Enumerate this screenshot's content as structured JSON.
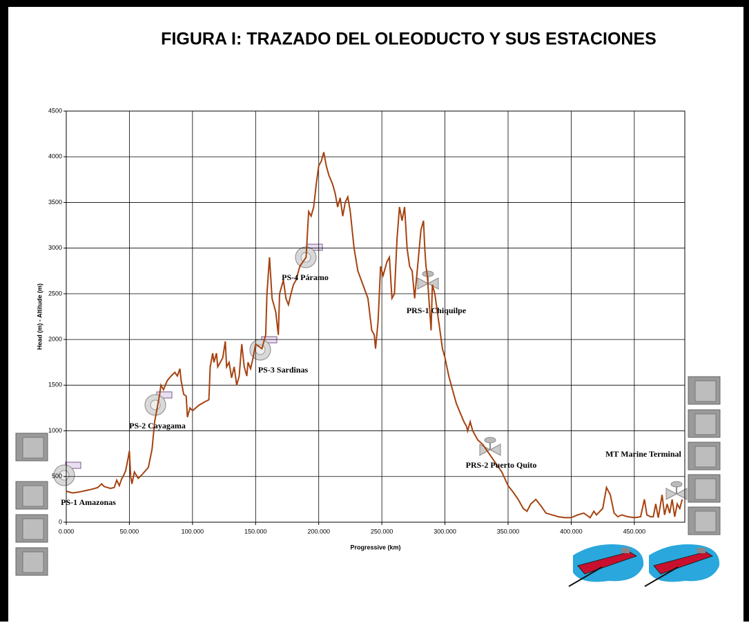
{
  "chart_data": {
    "type": "line",
    "title": "FIGURA I: TRAZADO DEL OLEODUCTO Y SUS ESTACIONES",
    "x_label": "Progressive (km)",
    "y_label": "Head (m) - Altitude (m)",
    "color": "#a5420f",
    "grid": true,
    "xlim": [
      0,
      490
    ],
    "ylim": [
      0,
      4500
    ],
    "xticks": [
      {
        "value": 0,
        "label": "0.000"
      },
      {
        "value": 50,
        "label": "50.000"
      },
      {
        "value": 100,
        "label": "100.000"
      },
      {
        "value": 150,
        "label": "150.000"
      },
      {
        "value": 200,
        "label": "200.000"
      },
      {
        "value": 250,
        "label": "250.000"
      },
      {
        "value": 300,
        "label": "300.000"
      },
      {
        "value": 350,
        "label": "350.000"
      },
      {
        "value": 400,
        "label": "400.000"
      },
      {
        "value": 450,
        "label": "450.000"
      }
    ],
    "yticks": [
      0,
      500,
      1000,
      1500,
      2000,
      2500,
      3000,
      3500,
      4000,
      4500
    ],
    "annotations": [
      "PS-1 Amazonas",
      "PS-2 Cayagama",
      "PS-3 Sardinas",
      "PS-4 Páramo",
      "PRS-1 Chiquilpe",
      "PRS-2 Puerto Quito",
      "MT Marine Terminal"
    ],
    "x": [
      0,
      5,
      10,
      20,
      25,
      28,
      30,
      35,
      38,
      40,
      42,
      44,
      45,
      47,
      49,
      50,
      51,
      52,
      54,
      57,
      60,
      65,
      68,
      70,
      72,
      74,
      75,
      77,
      80,
      83,
      86,
      88,
      90,
      91,
      93,
      95,
      96,
      98,
      100,
      105,
      110,
      113,
      114,
      116,
      117,
      119,
      120,
      122,
      124,
      126,
      127,
      129,
      131,
      133,
      135,
      137,
      139,
      141,
      143,
      144,
      146,
      148,
      150,
      155,
      158,
      159,
      161,
      163,
      166,
      168,
      169,
      172,
      174,
      176,
      178,
      180,
      182,
      185,
      190,
      192,
      194,
      196,
      198,
      200,
      202,
      204,
      206,
      208,
      211,
      213,
      215,
      217,
      219,
      221,
      223,
      225,
      228,
      231,
      235,
      239,
      242,
      244,
      245,
      247,
      249,
      251,
      254,
      256,
      258,
      260,
      262,
      264,
      266,
      268,
      270,
      272,
      274,
      276,
      277,
      279,
      281,
      283,
      284,
      285,
      286,
      287,
      289,
      290,
      292,
      294,
      296,
      298,
      300,
      303,
      306,
      309,
      312,
      315,
      317,
      318,
      320,
      322,
      324,
      326,
      330,
      335,
      340,
      345,
      350,
      354,
      358,
      362,
      365,
      368,
      372,
      376,
      380,
      385,
      390,
      395,
      400,
      405,
      410,
      415,
      418,
      420,
      425,
      428,
      431,
      434,
      437,
      440,
      445,
      450,
      455,
      458,
      460,
      463,
      465,
      467,
      469,
      472,
      474,
      476,
      478,
      480,
      482,
      484,
      486,
      488
    ],
    "values": [
      340,
      320,
      330,
      360,
      380,
      420,
      390,
      370,
      380,
      460,
      400,
      480,
      500,
      560,
      700,
      780,
      500,
      420,
      550,
      480,
      520,
      600,
      800,
      1100,
      1250,
      1400,
      1500,
      1450,
      1550,
      1600,
      1640,
      1600,
      1680,
      1550,
      1400,
      1380,
      1150,
      1250,
      1220,
      1280,
      1320,
      1340,
      1700,
      1850,
      1750,
      1850,
      1700,
      1750,
      1800,
      1980,
      1700,
      1750,
      1580,
      1700,
      1500,
      1600,
      1950,
      1700,
      1600,
      1750,
      1680,
      1800,
      1950,
      1900,
      2050,
      2500,
      2900,
      2450,
      2300,
      2050,
      2500,
      2650,
      2450,
      2380,
      2500,
      2600,
      2650,
      2800,
      2900,
      3400,
      3350,
      3450,
      3700,
      3900,
      3950,
      4050,
      3900,
      3800,
      3700,
      3600,
      3450,
      3550,
      3350,
      3500,
      3560,
      3400,
      3000,
      2750,
      2600,
      2450,
      2100,
      2050,
      1900,
      2200,
      2800,
      2700,
      2850,
      2900,
      2450,
      2500,
      3100,
      3450,
      3300,
      3450,
      3000,
      2800,
      2750,
      2450,
      2600,
      2900,
      3200,
      3300,
      3000,
      2800,
      2700,
      2500,
      2100,
      2600,
      2500,
      2300,
      2100,
      1900,
      1800,
      1600,
      1450,
      1300,
      1200,
      1100,
      1050,
      1000,
      1100,
      1000,
      950,
      900,
      850,
      750,
      650,
      550,
      400,
      330,
      250,
      150,
      120,
      200,
      250,
      180,
      100,
      80,
      60,
      50,
      50,
      80,
      100,
      50,
      120,
      80,
      150,
      380,
      300,
      100,
      60,
      80,
      60,
      50,
      60,
      250,
      80,
      60,
      60,
      200,
      50,
      300,
      80,
      200,
      100,
      250,
      60,
      200,
      150,
      250
    ]
  }
}
